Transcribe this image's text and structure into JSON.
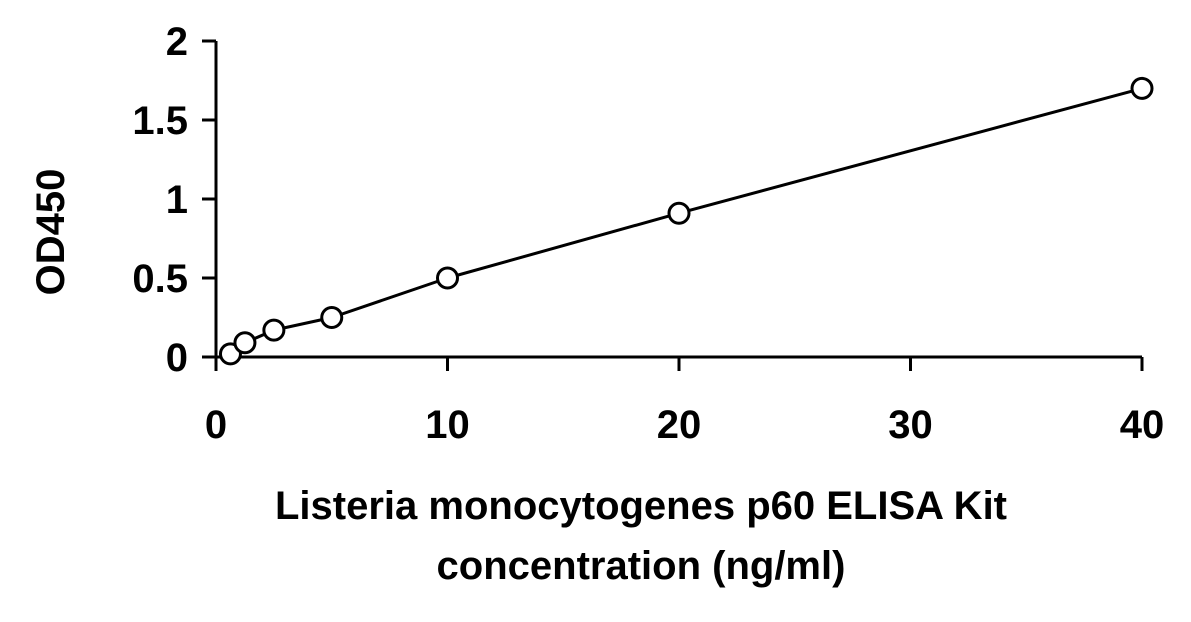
{
  "chart_data": {
    "type": "scatter",
    "title": "",
    "xlabel_lines": [
      "Listeria monocytogenes p60 ELISA Kit",
      "concentration (ng/ml)"
    ],
    "ylabel": "OD450",
    "xlim": [
      0,
      40
    ],
    "ylim": [
      0,
      2
    ],
    "xticks": [
      0,
      10,
      20,
      30,
      40
    ],
    "yticks": [
      0,
      0.5,
      1,
      1.5,
      2
    ],
    "xtick_labels": [
      "0",
      "10",
      "20",
      "30",
      "40"
    ],
    "ytick_labels": [
      "0",
      "0.5",
      "1",
      "1.5",
      "2"
    ],
    "grid": false,
    "legend": "none",
    "series": [
      {
        "marker": "open-circle",
        "trendline": true,
        "x": [
          0.625,
          1.25,
          2.5,
          5,
          10,
          20,
          40
        ],
        "y": [
          0.02,
          0.09,
          0.17,
          0.25,
          0.5,
          0.91,
          1.7
        ]
      }
    ],
    "colors": {
      "line": "#000000",
      "marker": "#000000"
    }
  }
}
